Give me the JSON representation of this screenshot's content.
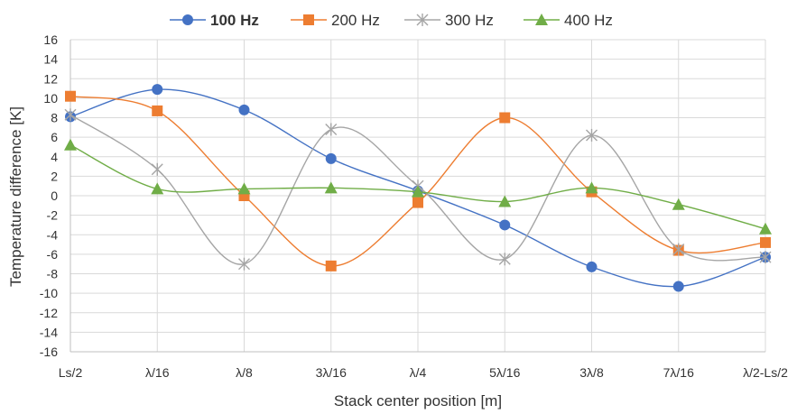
{
  "chart_data": {
    "type": "line",
    "xlabel": "Stack center position [m]",
    "ylabel": "Temperature  difference  [K]",
    "categories": [
      "Ls/2",
      "λ/16",
      "λ/8",
      "3λ/16",
      "λ/4",
      "5λ/16",
      "3λ/8",
      "7λ/16",
      "λ/2-Ls/2"
    ],
    "ylim": [
      -16,
      16
    ],
    "yticks": [
      16,
      14,
      12,
      10,
      8,
      6,
      4,
      2,
      0,
      -2,
      -4,
      -6,
      -8,
      -10,
      -12,
      -14,
      -16
    ],
    "grid": true,
    "legend_position": "top",
    "smooth": true,
    "series": [
      {
        "name": "100 Hz",
        "color": "#4472C4",
        "marker": "circle",
        "bold_legend": true,
        "values": [
          8.1,
          10.9,
          8.8,
          3.8,
          0.5,
          -3.0,
          -7.3,
          -9.3,
          -6.3
        ]
      },
      {
        "name": "200 Hz",
        "color": "#ED7D31",
        "marker": "square",
        "bold_legend": false,
        "values": [
          10.2,
          8.7,
          0.0,
          -7.2,
          -0.7,
          8.0,
          0.4,
          -5.6,
          -4.8
        ]
      },
      {
        "name": "300 Hz",
        "color": "#A5A5A5",
        "marker": "star",
        "bold_legend": false,
        "values": [
          8.3,
          2.7,
          -7.0,
          6.8,
          1.0,
          -6.5,
          6.2,
          -5.5,
          -6.3
        ]
      },
      {
        "name": "400 Hz",
        "color": "#70AD47",
        "marker": "triangle",
        "bold_legend": false,
        "values": [
          5.2,
          0.7,
          0.7,
          0.8,
          0.4,
          -0.6,
          0.8,
          -0.9,
          -3.4
        ]
      }
    ]
  }
}
